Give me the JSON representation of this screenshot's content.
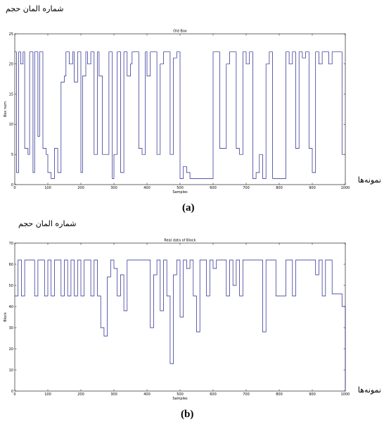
{
  "figure": {
    "panel_a": {
      "ylabel_fa": "شماره المان حجم",
      "xlabel_fa": "نمونه‌ها",
      "label": "(a)"
    },
    "panel_b": {
      "ylabel_fa": "شماره المان حجم",
      "xlabel_fa": "نمونه‌ها",
      "label": "(b)"
    }
  },
  "colors": {
    "line": "#1f1f8c",
    "axis": "#000000"
  },
  "chart_data": [
    {
      "type": "line",
      "title": "Old Box",
      "xlabel": "Samples",
      "ylabel": "Box num",
      "xlim": [
        0,
        1000
      ],
      "ylim": [
        0,
        25
      ],
      "xticks": [
        0,
        100,
        200,
        300,
        400,
        500,
        600,
        700,
        800,
        900,
        1000
      ],
      "yticks": [
        0,
        5,
        10,
        15,
        20,
        25
      ],
      "grid": false,
      "series": [
        {
          "x": [
            0,
            5,
            12,
            18,
            25,
            30,
            40,
            45,
            55,
            60,
            70,
            75,
            85,
            95,
            100,
            110,
            120,
            130,
            140,
            150,
            155,
            165,
            175,
            180,
            190,
            200,
            205,
            215,
            220,
            230,
            240,
            250,
            255,
            265,
            275,
            285,
            295,
            300,
            310,
            320,
            330,
            340,
            350,
            355,
            365,
            375,
            385,
            395,
            400,
            410,
            420,
            430,
            440,
            450,
            460,
            470,
            480,
            490,
            500,
            510,
            520,
            530,
            540,
            550,
            560,
            570,
            580,
            590,
            600,
            610,
            620,
            630,
            640,
            650,
            660,
            670,
            680,
            690,
            700,
            710,
            720,
            730,
            740,
            750,
            760,
            770,
            780,
            790,
            800,
            810,
            820,
            830,
            840,
            850,
            860,
            870,
            880,
            890,
            900,
            910,
            920,
            930,
            940,
            950,
            960,
            970,
            980,
            990,
            1000
          ],
          "y": [
            22,
            2,
            22,
            20,
            22,
            6,
            5,
            22,
            2,
            22,
            8,
            22,
            6,
            5,
            2,
            1,
            6,
            2,
            17,
            18,
            22,
            20,
            22,
            17,
            22,
            2,
            18,
            22,
            20,
            22,
            5,
            22,
            18,
            5,
            5,
            22,
            1,
            5,
            22,
            2,
            22,
            18,
            20,
            22,
            22,
            6,
            5,
            22,
            18,
            22,
            22,
            5,
            20,
            22,
            22,
            5,
            21,
            22,
            1,
            3,
            2,
            1,
            1,
            1,
            1,
            1,
            1,
            1,
            22,
            22,
            6,
            6,
            20,
            22,
            22,
            6,
            5,
            22,
            20,
            22,
            1,
            2,
            5,
            1,
            20,
            22,
            1,
            1,
            1,
            1,
            22,
            20,
            22,
            6,
            22,
            21,
            22,
            6,
            2,
            22,
            20,
            22,
            22,
            20,
            22,
            22,
            22,
            5,
            5
          ]
        }
      ]
    },
    {
      "type": "line",
      "title": "Real data of Block",
      "xlabel": "Samples",
      "ylabel": "Block",
      "xlim": [
        0,
        1000
      ],
      "ylim": [
        0,
        70
      ],
      "xticks": [
        0,
        100,
        200,
        300,
        400,
        500,
        600,
        700,
        800,
        900,
        1000
      ],
      "yticks": [
        0,
        10,
        20,
        30,
        40,
        50,
        60,
        70
      ],
      "grid": false,
      "series": [
        {
          "x": [
            0,
            10,
            20,
            30,
            40,
            50,
            60,
            70,
            80,
            90,
            100,
            110,
            120,
            130,
            140,
            150,
            160,
            170,
            180,
            190,
            200,
            210,
            220,
            230,
            240,
            250,
            260,
            270,
            280,
            290,
            300,
            310,
            320,
            330,
            340,
            350,
            360,
            370,
            380,
            390,
            400,
            410,
            420,
            430,
            440,
            450,
            460,
            470,
            480,
            490,
            500,
            510,
            520,
            530,
            540,
            550,
            560,
            570,
            580,
            590,
            600,
            610,
            620,
            630,
            640,
            650,
            660,
            670,
            680,
            690,
            700,
            710,
            720,
            730,
            740,
            750,
            760,
            770,
            780,
            790,
            800,
            810,
            820,
            830,
            840,
            850,
            860,
            870,
            880,
            890,
            900,
            910,
            920,
            930,
            940,
            950,
            960,
            970,
            980,
            990,
            1000
          ],
          "y": [
            45,
            62,
            45,
            62,
            62,
            62,
            45,
            62,
            62,
            45,
            62,
            45,
            62,
            62,
            45,
            62,
            45,
            62,
            45,
            62,
            45,
            62,
            62,
            45,
            62,
            45,
            30,
            26,
            54,
            62,
            58,
            45,
            55,
            38,
            62,
            62,
            62,
            62,
            62,
            62,
            62,
            30,
            55,
            62,
            38,
            62,
            45,
            13,
            55,
            62,
            35,
            62,
            58,
            62,
            45,
            28,
            62,
            62,
            45,
            62,
            58,
            62,
            62,
            62,
            45,
            62,
            50,
            62,
            45,
            62,
            62,
            62,
            62,
            62,
            62,
            28,
            62,
            62,
            62,
            45,
            45,
            45,
            62,
            62,
            45,
            62,
            62,
            62,
            62,
            62,
            62,
            55,
            62,
            45,
            62,
            62,
            46,
            46,
            46,
            40,
            1
          ]
        }
      ]
    }
  ]
}
